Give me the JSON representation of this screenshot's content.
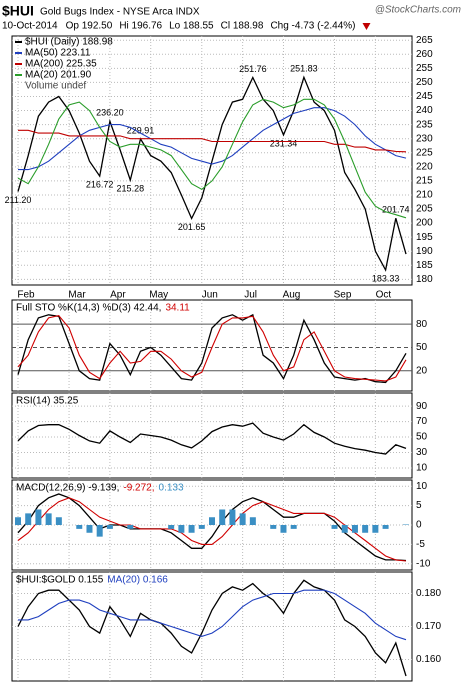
{
  "header": {
    "symbol": "$HUI",
    "name": "Gold Bugs Index - NYSE Arca INDX",
    "watermark": "@StockCharts.com",
    "date": "10-Oct-2014",
    "quote": [
      "Op 192.50",
      "Hi 196.76",
      "Lo 188.55",
      "Cl 188.98",
      "Chg -4.73 (-2.44%)"
    ]
  },
  "chart_data": [
    {
      "type": "line",
      "categories": [
        "Feb",
        null,
        null,
        null,
        null,
        "Mar",
        null,
        null,
        null,
        "Apr",
        null,
        null,
        null,
        "May",
        null,
        null,
        null,
        null,
        "Jun",
        null,
        null,
        null,
        "Jul",
        null,
        null,
        null,
        "Aug",
        null,
        null,
        null,
        null,
        "Sep",
        null,
        null,
        null,
        "Oct",
        null,
        null,
        null
      ],
      "ylim": [
        178,
        266.5
      ],
      "yticks": [
        180,
        185,
        190,
        195,
        200,
        205,
        210,
        215,
        220,
        225,
        230,
        235,
        240,
        245,
        250,
        255,
        260,
        265
      ],
      "grid": true,
      "volume_label": "Volume undef",
      "series": [
        {
          "name": "$HUI (Daily) 188.98",
          "color": "#000000",
          "values": [
            211.2,
            224,
            238,
            243,
            245,
            240,
            232,
            222,
            216.72,
            236.2,
            226,
            215.28,
            229.91,
            224,
            222,
            218,
            210,
            201.65,
            209,
            222,
            235,
            243,
            244,
            251.76,
            244,
            240,
            231.34,
            240,
            251.83,
            243,
            240,
            233,
            218,
            212,
            205,
            190,
            183.33,
            201.74,
            188.98
          ],
          "value_labels": [
            "211.20",
            null,
            null,
            null,
            null,
            null,
            null,
            null,
            "216.72",
            "236.20",
            null,
            "215.28",
            "229.91",
            null,
            null,
            null,
            null,
            "201.65",
            null,
            null,
            null,
            null,
            null,
            "251.76",
            null,
            null,
            "231.34",
            null,
            "251.83",
            null,
            null,
            null,
            null,
            null,
            null,
            null,
            "183.33",
            "201.74",
            null
          ]
        },
        {
          "name": "MA(50) 223.11",
          "color": "#1f3fbf",
          "values": [
            219,
            219,
            220,
            222,
            225,
            228,
            231,
            233,
            234,
            235,
            235,
            234,
            232,
            230,
            228,
            227,
            225,
            223,
            222,
            221,
            222,
            224,
            227,
            230,
            233,
            235,
            237,
            239,
            240,
            241,
            241,
            240,
            238,
            235,
            231,
            228,
            226,
            224,
            223.11
          ]
        },
        {
          "name": "MA(200) 225.35",
          "color": "#c00000",
          "values": [
            233,
            233,
            232,
            232,
            232,
            231,
            231,
            231,
            231,
            231,
            231,
            230,
            230,
            230,
            230,
            230,
            230,
            230,
            230,
            229,
            229,
            229,
            229,
            229,
            229,
            229,
            229,
            229,
            229,
            229,
            229,
            228,
            228,
            227,
            227,
            226,
            226,
            225.5,
            225.35
          ]
        },
        {
          "name": "MA(20) 201.90",
          "color": "#2a9d2a",
          "values": [
            216,
            214,
            220,
            228,
            237,
            242,
            243,
            240,
            234,
            229,
            227,
            228,
            228,
            227,
            226,
            224,
            219,
            214,
            212,
            215,
            220,
            228,
            236,
            242,
            244,
            243,
            241,
            242,
            244,
            244,
            242,
            237,
            229,
            220,
            211,
            206,
            204,
            203,
            201.9
          ]
        }
      ]
    },
    {
      "type": "line",
      "ylim": [
        -6,
        111
      ],
      "yticks": [
        20,
        50,
        80
      ],
      "grid": true,
      "series": [
        {
          "name": "Full STO %K(14,3) %D(3) 42.44,",
          "color": "#000000",
          "values": [
            15,
            60,
            88,
            92,
            90,
            55,
            20,
            10,
            8,
            55,
            40,
            15,
            45,
            50,
            40,
            25,
            10,
            8,
            30,
            75,
            88,
            92,
            85,
            92,
            40,
            30,
            10,
            40,
            85,
            60,
            30,
            12,
            10,
            8,
            10,
            6,
            5,
            20,
            42.44
          ]
        },
        {
          "name": "34.11",
          "color": "#d00000",
          "values": [
            25,
            40,
            70,
            88,
            91,
            75,
            40,
            18,
            10,
            30,
            45,
            30,
            32,
            45,
            45,
            35,
            20,
            12,
            18,
            50,
            80,
            88,
            88,
            90,
            70,
            40,
            20,
            25,
            60,
            70,
            45,
            20,
            12,
            10,
            9,
            8,
            7,
            12,
            34.11
          ]
        }
      ]
    },
    {
      "type": "line",
      "ylim": [
        -3,
        107
      ],
      "yticks": [
        10,
        30,
        50,
        70,
        90
      ],
      "grid": true,
      "series": [
        {
          "name": "RSI(14) 35.25",
          "color": "#000000",
          "values": [
            45,
            58,
            65,
            66,
            66,
            60,
            52,
            45,
            42,
            58,
            50,
            43,
            54,
            52,
            50,
            46,
            40,
            36,
            45,
            57,
            63,
            66,
            64,
            68,
            55,
            50,
            46,
            54,
            66,
            56,
            50,
            42,
            38,
            35,
            33,
            30,
            28,
            40,
            35.25
          ]
        }
      ]
    },
    {
      "type": "line",
      "ylim": [
        -11.6,
        11.6
      ],
      "yticks": [
        -10,
        -5,
        0,
        5,
        10
      ],
      "grid": true,
      "series": [
        {
          "name": "MACD(12,26,9) -9.139,",
          "color": "#000000",
          "values": [
            -2,
            1,
            5,
            7,
            8,
            7,
            5,
            2,
            -1,
            0,
            0,
            -1,
            -1,
            -1,
            -1,
            -2,
            -4,
            -6,
            -6,
            -3,
            1,
            4,
            6,
            7,
            6,
            4,
            2,
            2,
            3,
            3,
            3,
            1,
            -2,
            -4,
            -6,
            -8,
            -9,
            -9,
            -9.139
          ]
        },
        {
          "name": "-9.272,",
          "color": "#d00000",
          "values": [
            -4,
            -2,
            1,
            4,
            6,
            7,
            6,
            4,
            2,
            1,
            0,
            0,
            -1,
            -1,
            -1,
            -1,
            -2,
            -4,
            -5,
            -5,
            -3,
            0,
            3,
            5,
            6,
            5,
            4,
            3,
            3,
            3,
            3,
            2,
            0,
            -2,
            -4,
            -6,
            -8,
            -9,
            -9.272
          ]
        },
        {
          "name": "0.133",
          "color": "#3a8fc4",
          "type": "bar",
          "values": [
            2,
            3,
            4,
            3,
            2,
            0,
            -1,
            -2,
            -3,
            -1,
            0,
            -1,
            0,
            0,
            0,
            -1,
            -2,
            -2,
            -1,
            2,
            4,
            4,
            3,
            2,
            0,
            -1,
            -2,
            -1,
            0,
            0,
            0,
            -1,
            -2,
            -2,
            -2,
            -2,
            -1,
            0,
            0.133
          ]
        }
      ]
    },
    {
      "type": "line",
      "ylim": [
        0.1535,
        0.1865
      ],
      "yticks": [
        {
          "value": 0.16,
          "label": "0.160"
        },
        {
          "value": 0.17,
          "label": "0.170"
        },
        {
          "value": 0.18,
          "label": "0.180"
        }
      ],
      "grid": true,
      "series": [
        {
          "name": "$HUI:$GOLD 0.155",
          "color": "#000000",
          "values": [
            0.17,
            0.176,
            0.18,
            0.181,
            0.181,
            0.178,
            0.175,
            0.17,
            0.168,
            0.176,
            0.172,
            0.167,
            0.174,
            0.172,
            0.171,
            0.168,
            0.164,
            0.162,
            0.168,
            0.175,
            0.18,
            0.182,
            0.181,
            0.183,
            0.18,
            0.178,
            0.174,
            0.18,
            0.184,
            0.182,
            0.181,
            0.178,
            0.172,
            0.17,
            0.167,
            0.162,
            0.159,
            0.165,
            0.155
          ]
        },
        {
          "name": "MA(20) 0.166",
          "color": "#1f3fbf",
          "values": [
            0.172,
            0.172,
            0.173,
            0.175,
            0.177,
            0.178,
            0.178,
            0.177,
            0.175,
            0.174,
            0.173,
            0.172,
            0.172,
            0.172,
            0.171,
            0.17,
            0.169,
            0.168,
            0.167,
            0.168,
            0.17,
            0.173,
            0.176,
            0.178,
            0.179,
            0.18,
            0.18,
            0.18,
            0.181,
            0.181,
            0.181,
            0.18,
            0.178,
            0.176,
            0.174,
            0.171,
            0.169,
            0.167,
            0.166
          ]
        }
      ]
    }
  ]
}
